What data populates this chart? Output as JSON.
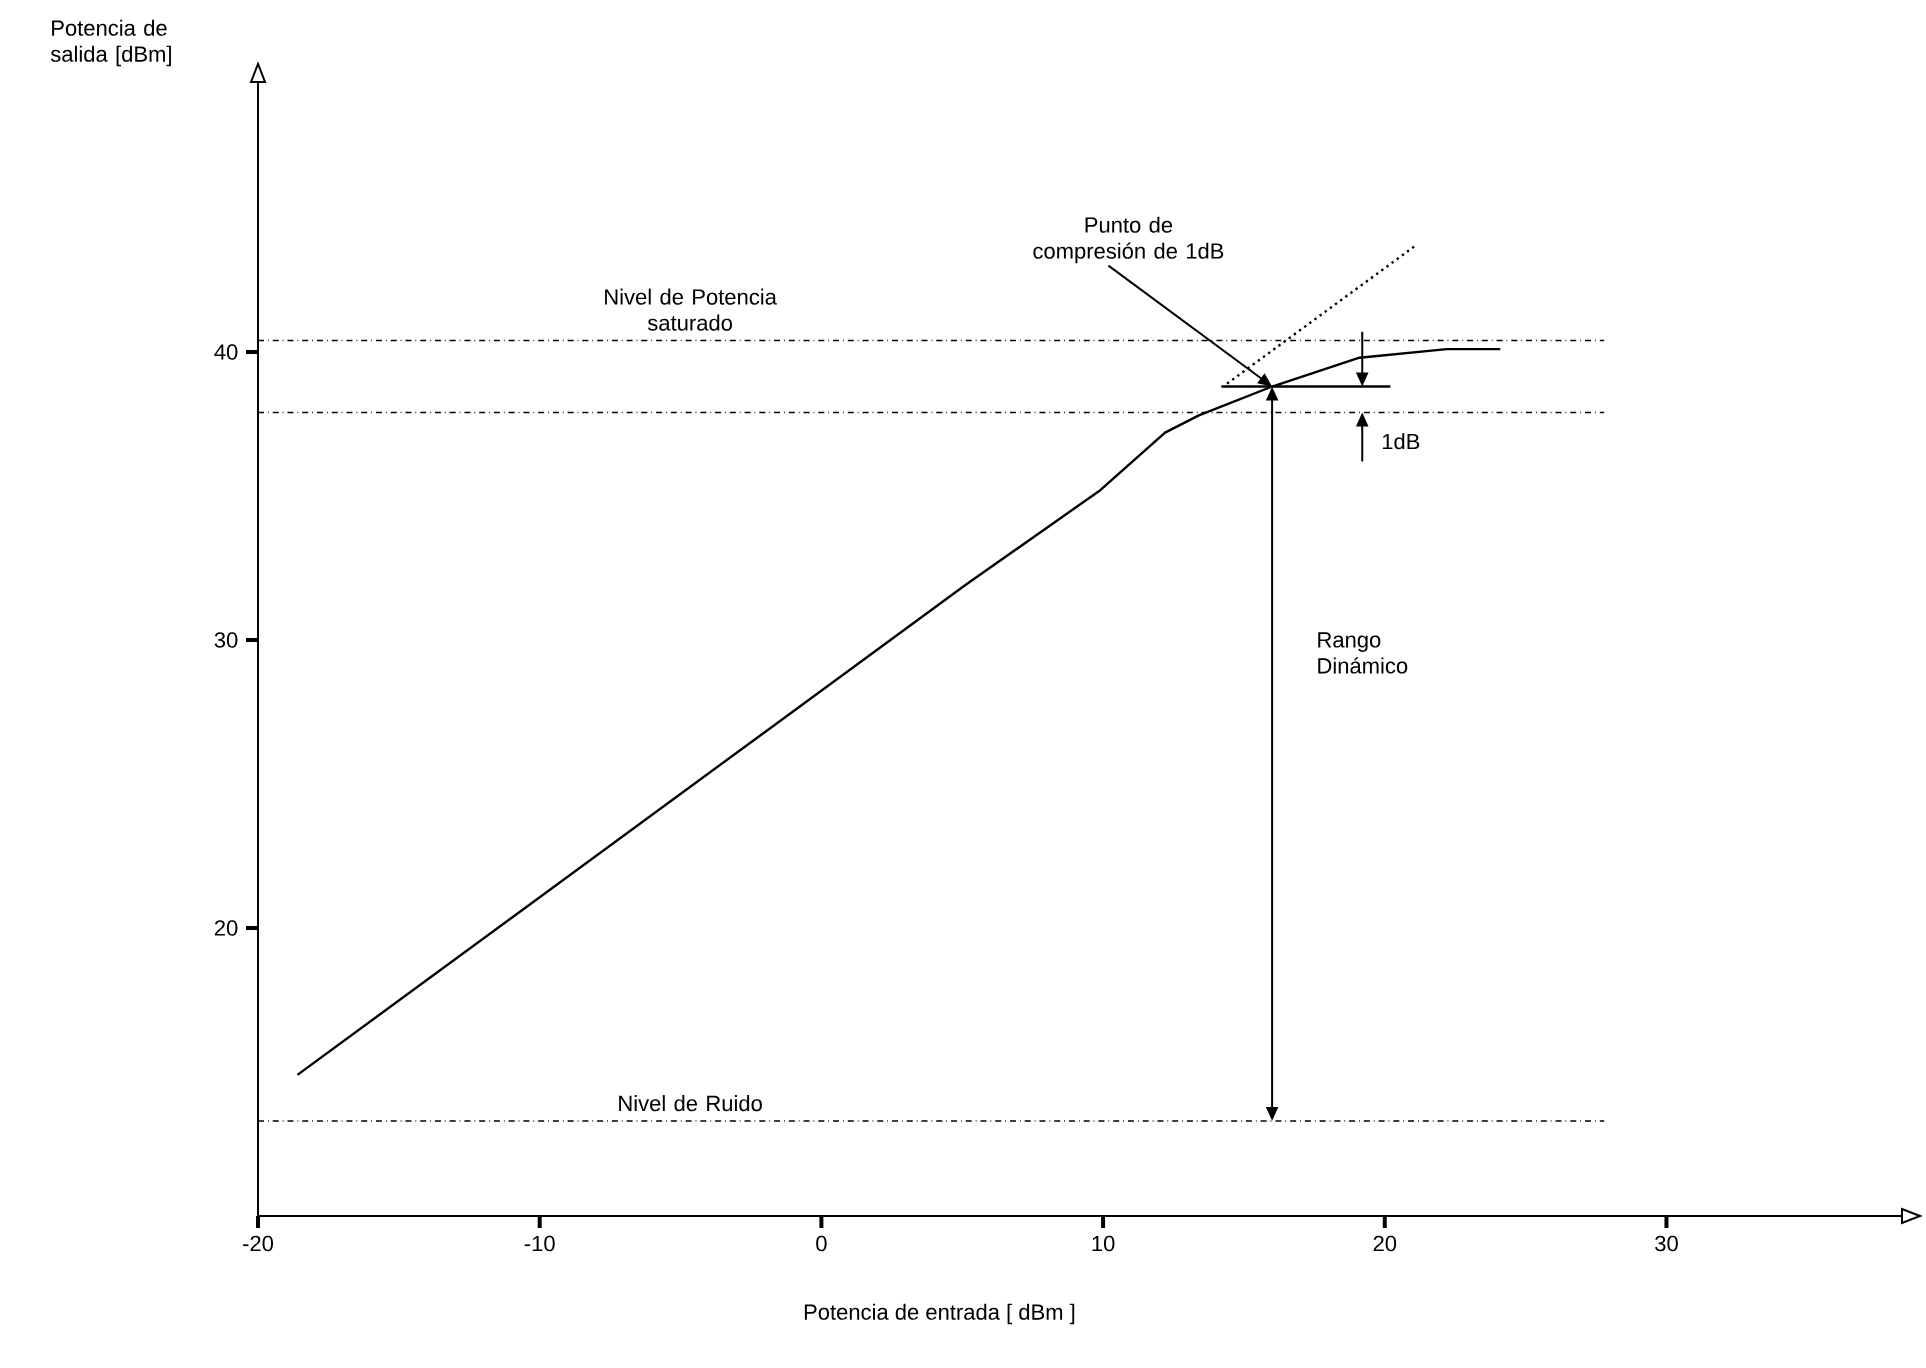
{
  "chart_data": {
    "type": "line",
    "xlabel": "Potencia de entrada [ dBm ]",
    "ylabel": "Potencia de salida [dBm]",
    "xlim": [
      -20,
      39
    ],
    "ylim": [
      10,
      50
    ],
    "xticks": [
      -20,
      -10,
      0,
      10,
      20,
      30
    ],
    "yticks": [
      20,
      30,
      40
    ],
    "grid": false,
    "marker": "none",
    "series": [
      {
        "color": "#000000",
        "line_style": "solid",
        "x": [
          -18.6,
          5.1,
          9.9,
          12.2,
          13.4,
          16.0,
          19.1,
          22.2,
          24.1
        ],
        "values": [
          14.9,
          31.9,
          35.2,
          37.2,
          37.8,
          38.8,
          39.8,
          40.1,
          40.1
        ]
      },
      {
        "color": "#000000",
        "line_style": "dotted",
        "x": [
          14.4,
          21.1
        ],
        "values": [
          38.9,
          43.7
        ]
      },
      {
        "color": "#000000",
        "line_style": "solid",
        "x": [
          14.2,
          20.2
        ],
        "values": [
          38.8,
          38.8
        ]
      }
    ],
    "ref_lines": [
      {
        "axis": "y",
        "value": 40.4,
        "label": "Nivel de Potencia saturado",
        "line_style": "dashdotted"
      },
      {
        "axis": "y",
        "value": 37.9,
        "line_style": "dashdotted"
      },
      {
        "axis": "y",
        "value": 13.3,
        "label": "Nivel de Ruido",
        "line_style": "dashdotted"
      }
    ],
    "annotations": [
      {
        "text": "Punto de compresión de 1dB",
        "x": 16.0,
        "y": 38.8
      },
      "Rango Dinámico",
      {
        "text": "1dB",
        "x": 19.2,
        "y": 37.9
      }
    ]
  }
}
